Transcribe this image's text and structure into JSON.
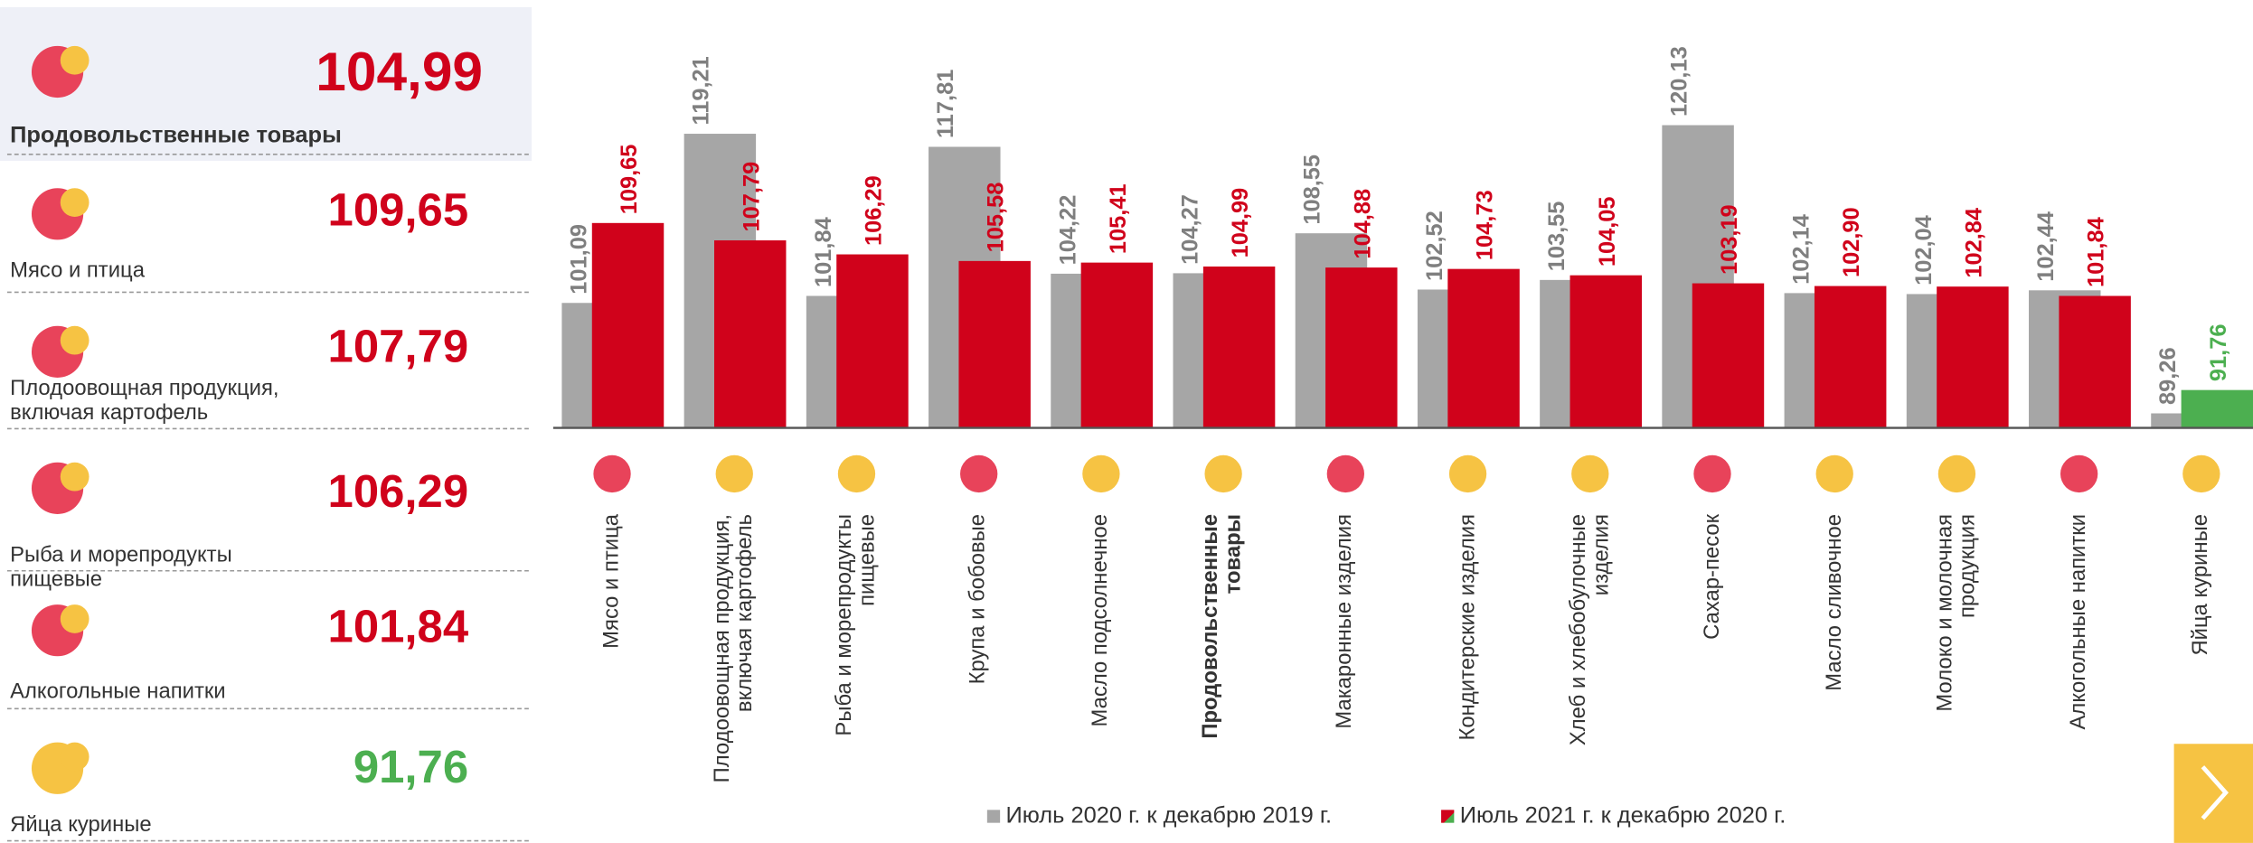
{
  "summary": [
    {
      "label": "Продовольственные товары",
      "value": "104,99",
      "color": "#d0021b"
    },
    {
      "label": "Мясо и птица",
      "value": "109,65",
      "color": "#d0021b"
    },
    {
      "label": "Плодоовощная продукция, включая картофель",
      "value": "107,79",
      "color": "#d0021b"
    },
    {
      "label": "Рыба и морепродукты пищевые",
      "value": "106,29",
      "color": "#d0021b"
    },
    {
      "label": "Алкогольные напитки",
      "value": "101,84",
      "color": "#d0021b"
    },
    {
      "label": "Яйца куриные",
      "value": "91,76",
      "color": "#4caf50"
    }
  ],
  "chart_data": {
    "type": "bar",
    "categories": [
      "Мясо и птица",
      "Плодоовощная продукция, включая картофель",
      "Рыба и морепродукты пищевые",
      "Крупа и бобовые",
      "Масло подсолнечное",
      "Продовольственные товары",
      "Макаронные изделия",
      "Кондитерские изделия",
      "Хлеб и хлебобулочные изделия",
      "Сахар-песок",
      "Масло сливочное",
      "Молоко и молочная продукция",
      "Алкогольные напитки",
      "Яйца куриные"
    ],
    "series": [
      {
        "name": "Июль 2020 г. к декабрю 2019 г.",
        "color": "#a6a6a6",
        "values": [
          101.09,
          119.21,
          101.84,
          117.81,
          104.22,
          104.27,
          108.55,
          102.52,
          103.55,
          120.13,
          102.14,
          102.04,
          102.44,
          89.26
        ],
        "value_labels": [
          "101,09",
          "119,21",
          "101,84",
          "117,81",
          "104,22",
          "104,27",
          "108,55",
          "102,52",
          "103,55",
          "120,13",
          "102,14",
          "102,04",
          "102,44",
          "89,26"
        ],
        "label_color": "#7f7f7f"
      },
      {
        "name": "Июль 2021 г. к декабрю 2020 г.",
        "color": "#d0021b",
        "colors": [
          "#d0021b",
          "#d0021b",
          "#d0021b",
          "#d0021b",
          "#d0021b",
          "#d0021b",
          "#d0021b",
          "#d0021b",
          "#d0021b",
          "#d0021b",
          "#d0021b",
          "#d0021b",
          "#d0021b",
          "#4caf50"
        ],
        "values": [
          109.65,
          107.79,
          106.29,
          105.58,
          105.41,
          104.99,
          104.88,
          104.73,
          104.05,
          103.19,
          102.9,
          102.84,
          101.84,
          91.76
        ],
        "value_labels": [
          "109,65",
          "107,79",
          "106,29",
          "105,58",
          "105,41",
          "104,99",
          "104,88",
          "104,73",
          "104,05",
          "103,19",
          "102,90",
          "102,84",
          "101,84",
          "91,76"
        ]
      }
    ],
    "ylim": [
      87.7,
      130
    ]
  }
}
